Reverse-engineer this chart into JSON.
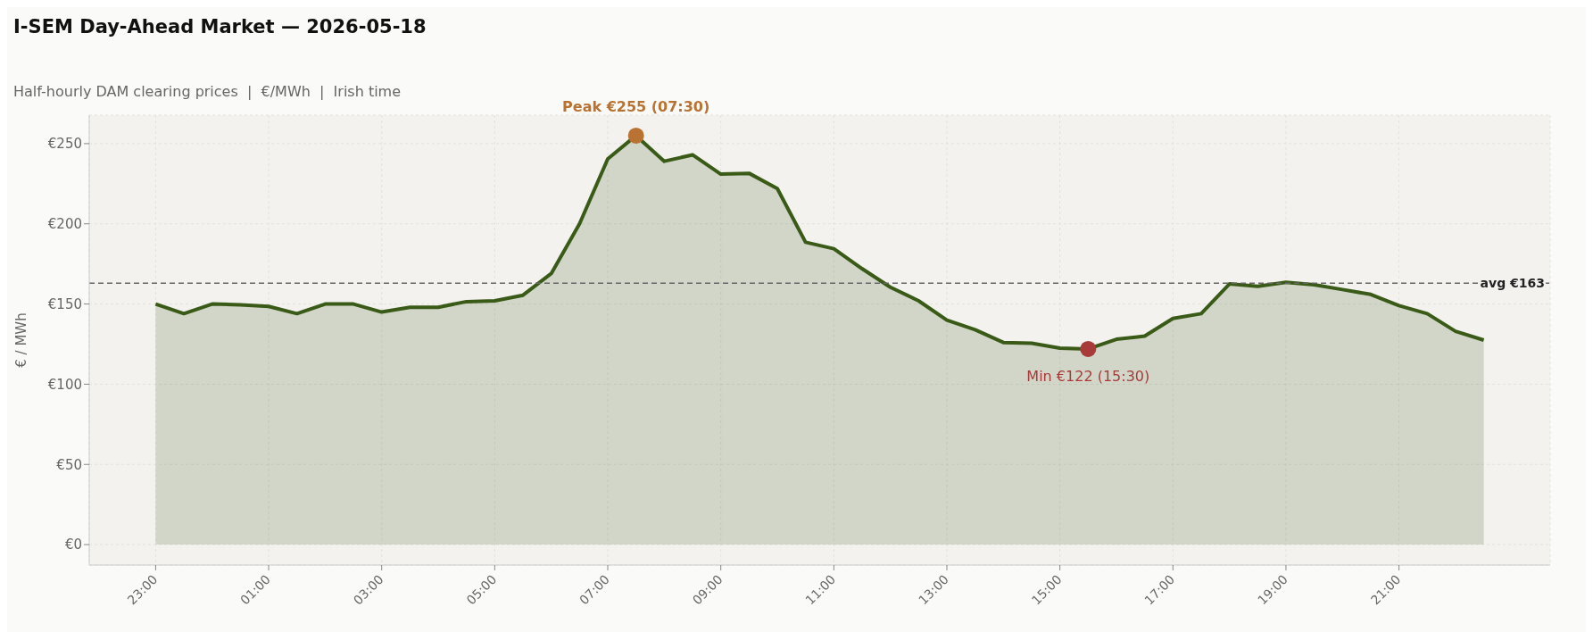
{
  "chart_data": {
    "type": "area",
    "title": "I-SEM Day-Ahead Market — 2026-05-18",
    "subtitle": "Half-hourly DAM clearing prices  |  €/MWh  |  Irish time",
    "ylabel": "€ / MWh",
    "categories": [
      "23:00",
      null,
      null,
      null,
      "01:00",
      null,
      null,
      null,
      "03:00",
      null,
      null,
      null,
      "05:00",
      null,
      null,
      null,
      "07:00",
      null,
      null,
      null,
      "09:00",
      null,
      null,
      null,
      "11:00",
      null,
      null,
      null,
      "13:00",
      null,
      null,
      null,
      "15:00",
      null,
      null,
      null,
      "17:00",
      null,
      null,
      null,
      "19:00",
      null,
      null,
      null,
      "21:00",
      null,
      null,
      null
    ],
    "series": [
      {
        "color": "#3a5a17",
        "values": [
          150,
          144,
          150,
          149.5,
          148.5,
          144,
          150,
          150,
          145,
          148,
          148,
          151.5,
          152,
          155.5,
          169,
          200,
          240.5,
          255,
          239,
          243,
          231,
          231.5,
          222,
          188.5,
          184.5,
          172,
          160.5,
          152,
          140,
          134,
          126,
          125.5,
          122.5,
          122,
          128,
          130,
          141,
          144,
          162.5,
          161,
          163.5,
          162,
          159,
          156,
          149,
          144,
          133,
          127.5
        ]
      }
    ],
    "ylim": [
      -12.75,
      267.75
    ],
    "yticks": [
      {
        "value": 0,
        "label": "€0"
      },
      {
        "value": 50,
        "label": "€50"
      },
      {
        "value": 100,
        "label": "€100"
      },
      {
        "value": 150,
        "label": "€150"
      },
      {
        "value": 200,
        "label": "€200"
      },
      {
        "value": 250,
        "label": "€250"
      }
    ],
    "ref_lines": [
      {
        "axis": "y",
        "value": 163,
        "label": "avg €163",
        "color": "#666666",
        "line_style": "dashed"
      }
    ],
    "annotations": [
      {
        "text": "Peak  €255  (07:30)",
        "y": 255
      },
      {
        "text": "Min  €122  (15:30)",
        "y": 122
      }
    ],
    "grid": true,
    "legend": false
  }
}
